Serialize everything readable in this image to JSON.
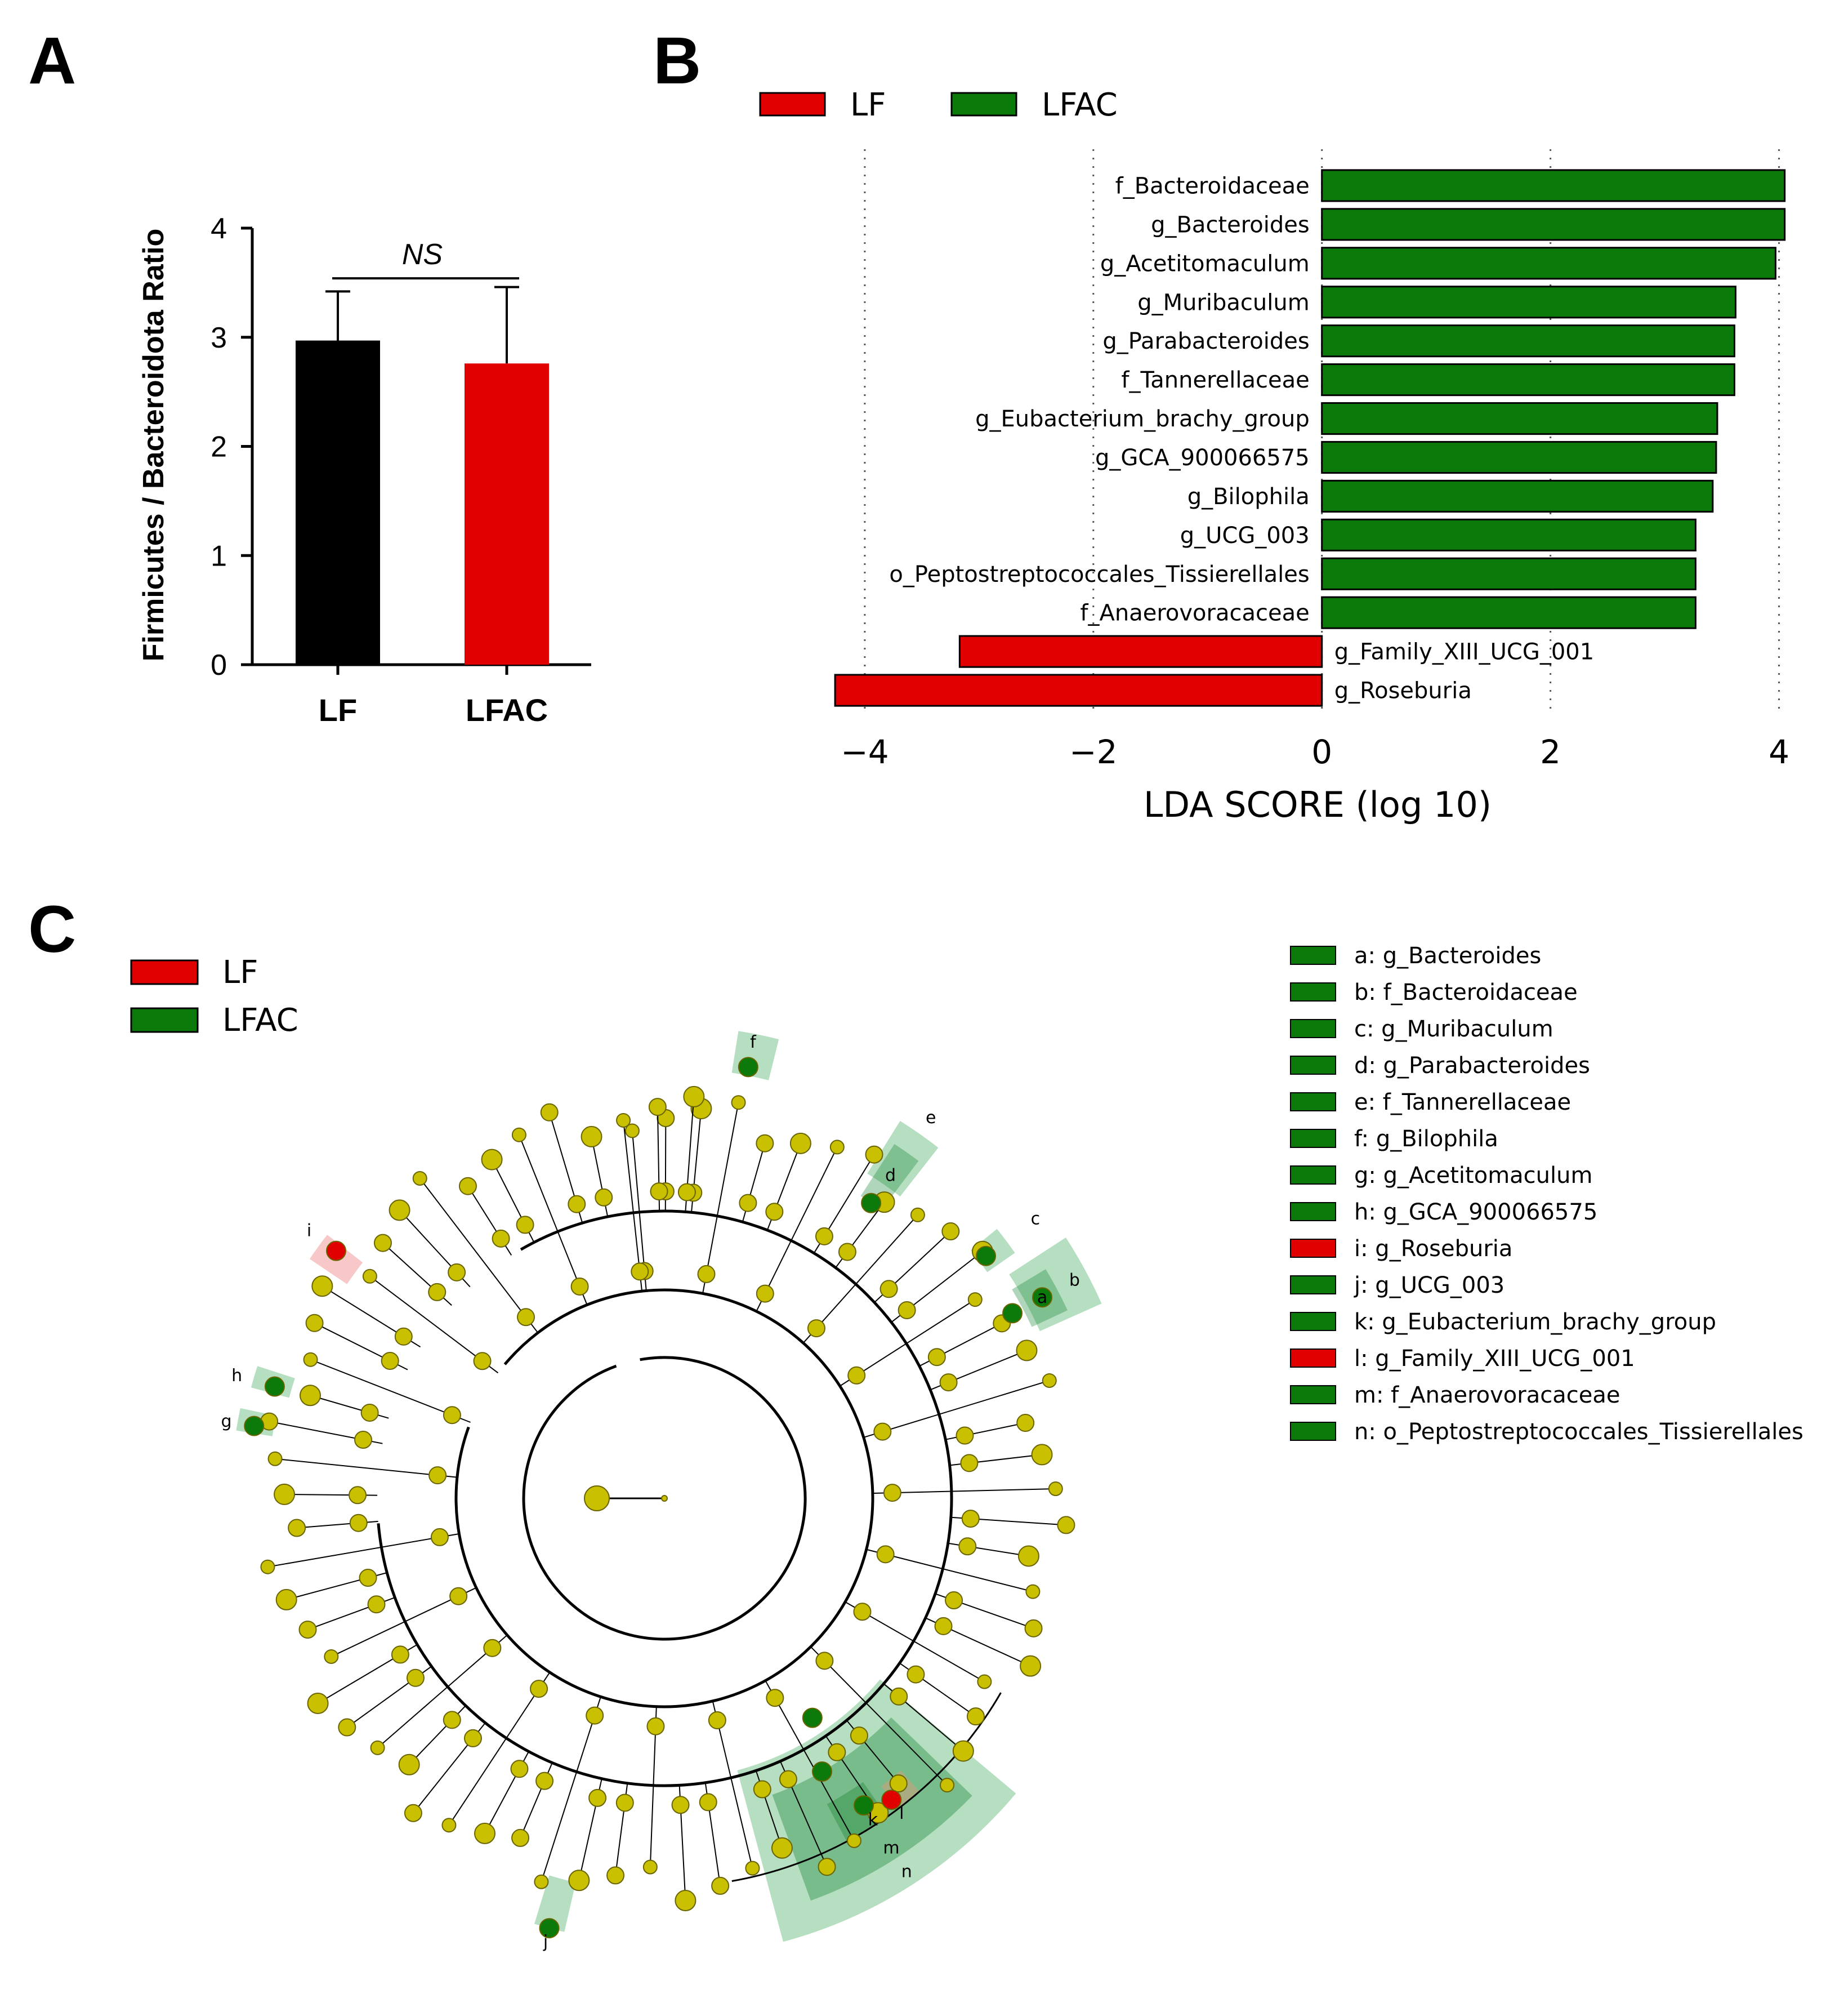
{
  "panels": {
    "a": {
      "letter": "A"
    },
    "b": {
      "letter": "B"
    },
    "c": {
      "letter": "C"
    }
  },
  "colors": {
    "lf": "#e00000",
    "lfac": "#0b7a0b",
    "node": "#c8c000",
    "black": "#000000"
  },
  "chart_data": [
    {
      "type": "bar",
      "panel": "A",
      "categories": [
        "LF",
        "LFAC"
      ],
      "values": [
        2.97,
        2.76
      ],
      "errors": [
        0.45,
        0.7
      ],
      "bar_colors": [
        "#000000",
        "#e00000"
      ],
      "ylabel": "Firmicutes / Bacteroidota Ratio",
      "ylim": [
        0,
        4
      ],
      "yticks": [
        "0",
        "1",
        "2",
        "3",
        "4"
      ],
      "annotation": "NS"
    },
    {
      "type": "bar",
      "panel": "B",
      "orientation": "horizontal",
      "legend": [
        {
          "label": "LF",
          "color": "#e00000"
        },
        {
          "label": "LFAC",
          "color": "#0b7a0b"
        }
      ],
      "legend_placement": "top",
      "categories": [
        "f_Bacteroidaceae",
        "g_Bacteroides",
        "g_Acetitomaculum",
        "g_Muribaculum",
        "g_Parabacteroides",
        "f_Tannerellaceae",
        "g_Eubacterium_brachy_group",
        "g_GCA_900066575",
        "g_Bilophila",
        "g_UCG_003",
        "o_Peptostreptococcales_Tissierellales",
        "f_Anaerovoracaceae",
        "g_Family_XIII_UCG_001",
        "g_Roseburia"
      ],
      "values": [
        4.05,
        4.05,
        3.97,
        3.62,
        3.61,
        3.61,
        3.46,
        3.45,
        3.42,
        3.27,
        3.27,
        3.27,
        -3.17,
        -4.26
      ],
      "groups": [
        "LFAC",
        "LFAC",
        "LFAC",
        "LFAC",
        "LFAC",
        "LFAC",
        "LFAC",
        "LFAC",
        "LFAC",
        "LFAC",
        "LFAC",
        "LFAC",
        "LF",
        "LF"
      ],
      "xlabel": "LDA SCORE (log 10)",
      "xlim": [
        -4.3,
        4.15
      ],
      "xticks": [
        {
          "value": -4,
          "label": "−4"
        },
        {
          "value": -2,
          "label": "−2"
        },
        {
          "value": 0,
          "label": "0"
        },
        {
          "value": 2,
          "label": "2"
        },
        {
          "value": 4,
          "label": "4"
        }
      ],
      "grid": "vertical-dotted"
    }
  ],
  "cladogram": {
    "legend": [
      {
        "label": "LF",
        "color": "#e00000"
      },
      {
        "label": "LFAC",
        "color": "#0b7a0b"
      }
    ],
    "key": [
      {
        "text": "a: g_Bacteroides",
        "color": "#0b7a0b"
      },
      {
        "text": "b: f_Bacteroidaceae",
        "color": "#0b7a0b"
      },
      {
        "text": "c: g_Muribaculum",
        "color": "#0b7a0b"
      },
      {
        "text": "d: g_Parabacteroides",
        "color": "#0b7a0b"
      },
      {
        "text": "e: f_Tannerellaceae",
        "color": "#0b7a0b"
      },
      {
        "text": "f: g_Bilophila",
        "color": "#0b7a0b"
      },
      {
        "text": "g: g_Acetitomaculum",
        "color": "#0b7a0b"
      },
      {
        "text": "h: g_GCA_900066575",
        "color": "#0b7a0b"
      },
      {
        "text": "i: g_Roseburia",
        "color": "#e00000"
      },
      {
        "text": "j: g_UCG_003",
        "color": "#0b7a0b"
      },
      {
        "text": "k: g_Eubacterium_brachy_group",
        "color": "#0b7a0b"
      },
      {
        "text": "l: g_Family_XIII_UCG_001",
        "color": "#e00000"
      },
      {
        "text": "m: f_Anaerovoracaceae",
        "color": "#0b7a0b"
      },
      {
        "text": "n: o_Peptostreptococcales_Tissierellales",
        "color": "#0b7a0b"
      }
    ],
    "highlights": [
      {
        "letter": "a",
        "color": "#0b7a0b",
        "angle": -28
      },
      {
        "letter": "b",
        "color": "#0b7a0b",
        "angle": -28
      },
      {
        "letter": "c",
        "color": "#0b7a0b",
        "angle": -37
      },
      {
        "letter": "d",
        "color": "#0b7a0b",
        "angle": -55
      },
      {
        "letter": "e",
        "color": "#0b7a0b",
        "angle": -55
      },
      {
        "letter": "f",
        "color": "#0b7a0b",
        "angle": -79
      },
      {
        "letter": "g",
        "color": "#0b7a0b",
        "angle": 190
      },
      {
        "letter": "h",
        "color": "#0b7a0b",
        "angle": 196
      },
      {
        "letter": "i",
        "color": "#e00000",
        "angle": 217
      },
      {
        "letter": "j",
        "color": "#0b7a0b",
        "angle": 105
      },
      {
        "letter": "k",
        "color": "#0b7a0b",
        "angle": 57
      },
      {
        "letter": "l",
        "color": "#e00000",
        "angle": 53
      },
      {
        "letter": "m",
        "color": "#0b7a0b",
        "angle": 57
      },
      {
        "letter": "n",
        "color": "#0b7a0b",
        "angle": 57
      }
    ]
  }
}
